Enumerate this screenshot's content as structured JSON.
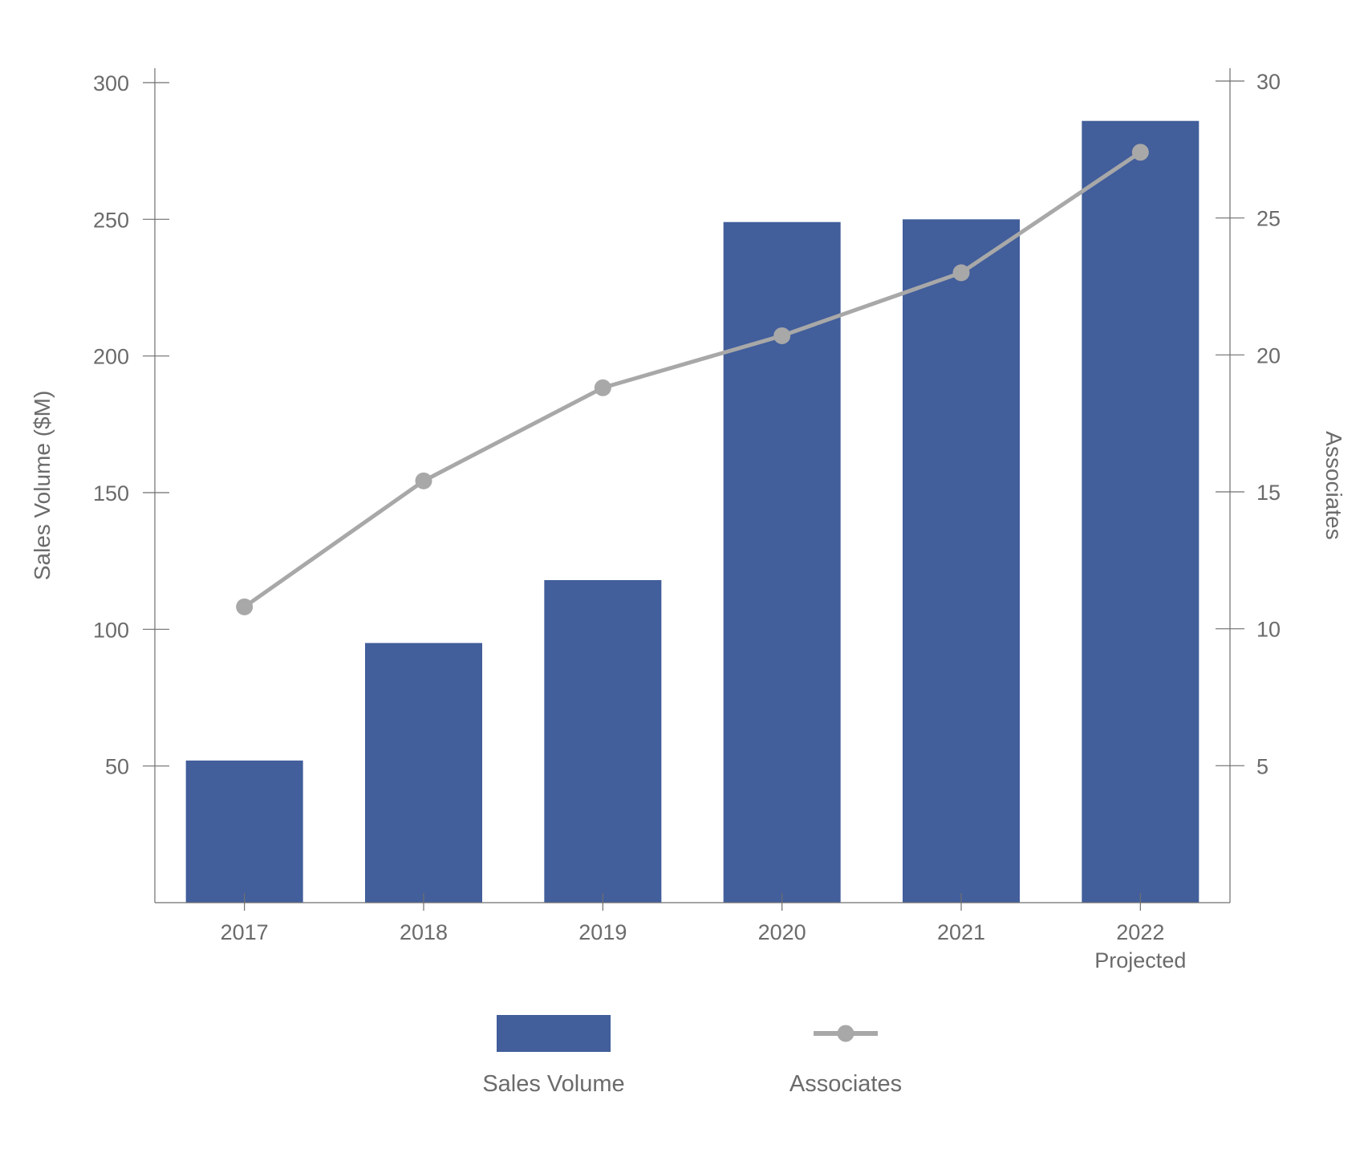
{
  "chart_data": {
    "type": "bar",
    "categories": [
      {
        "line1": "2017",
        "line2": ""
      },
      {
        "line1": "2018",
        "line2": ""
      },
      {
        "line1": "2019",
        "line2": ""
      },
      {
        "line1": "2020",
        "line2": ""
      },
      {
        "line1": "2021",
        "line2": ""
      },
      {
        "line1": "2022",
        "line2": "Projected"
      }
    ],
    "series": [
      {
        "name": "Sales Volume",
        "type": "bar",
        "axis": "left",
        "color": "#425e9b",
        "values": [
          52,
          95,
          118,
          249,
          250,
          286
        ]
      },
      {
        "name": "Associates",
        "type": "line",
        "axis": "right",
        "color": "#a8a8a8",
        "values": [
          10.8,
          15.4,
          18.8,
          20.7,
          23.0,
          27.4
        ]
      }
    ],
    "y_left": {
      "label": "Sales Volume ($M)",
      "min": 0,
      "max": 300,
      "ticks": [
        50,
        100,
        150,
        200,
        250,
        300
      ]
    },
    "y_right": {
      "label": "Associates",
      "min": 0,
      "max": 30,
      "ticks": [
        5,
        10,
        15,
        20,
        25,
        30
      ]
    },
    "grid": false,
    "legend_position": "bottom-center"
  }
}
